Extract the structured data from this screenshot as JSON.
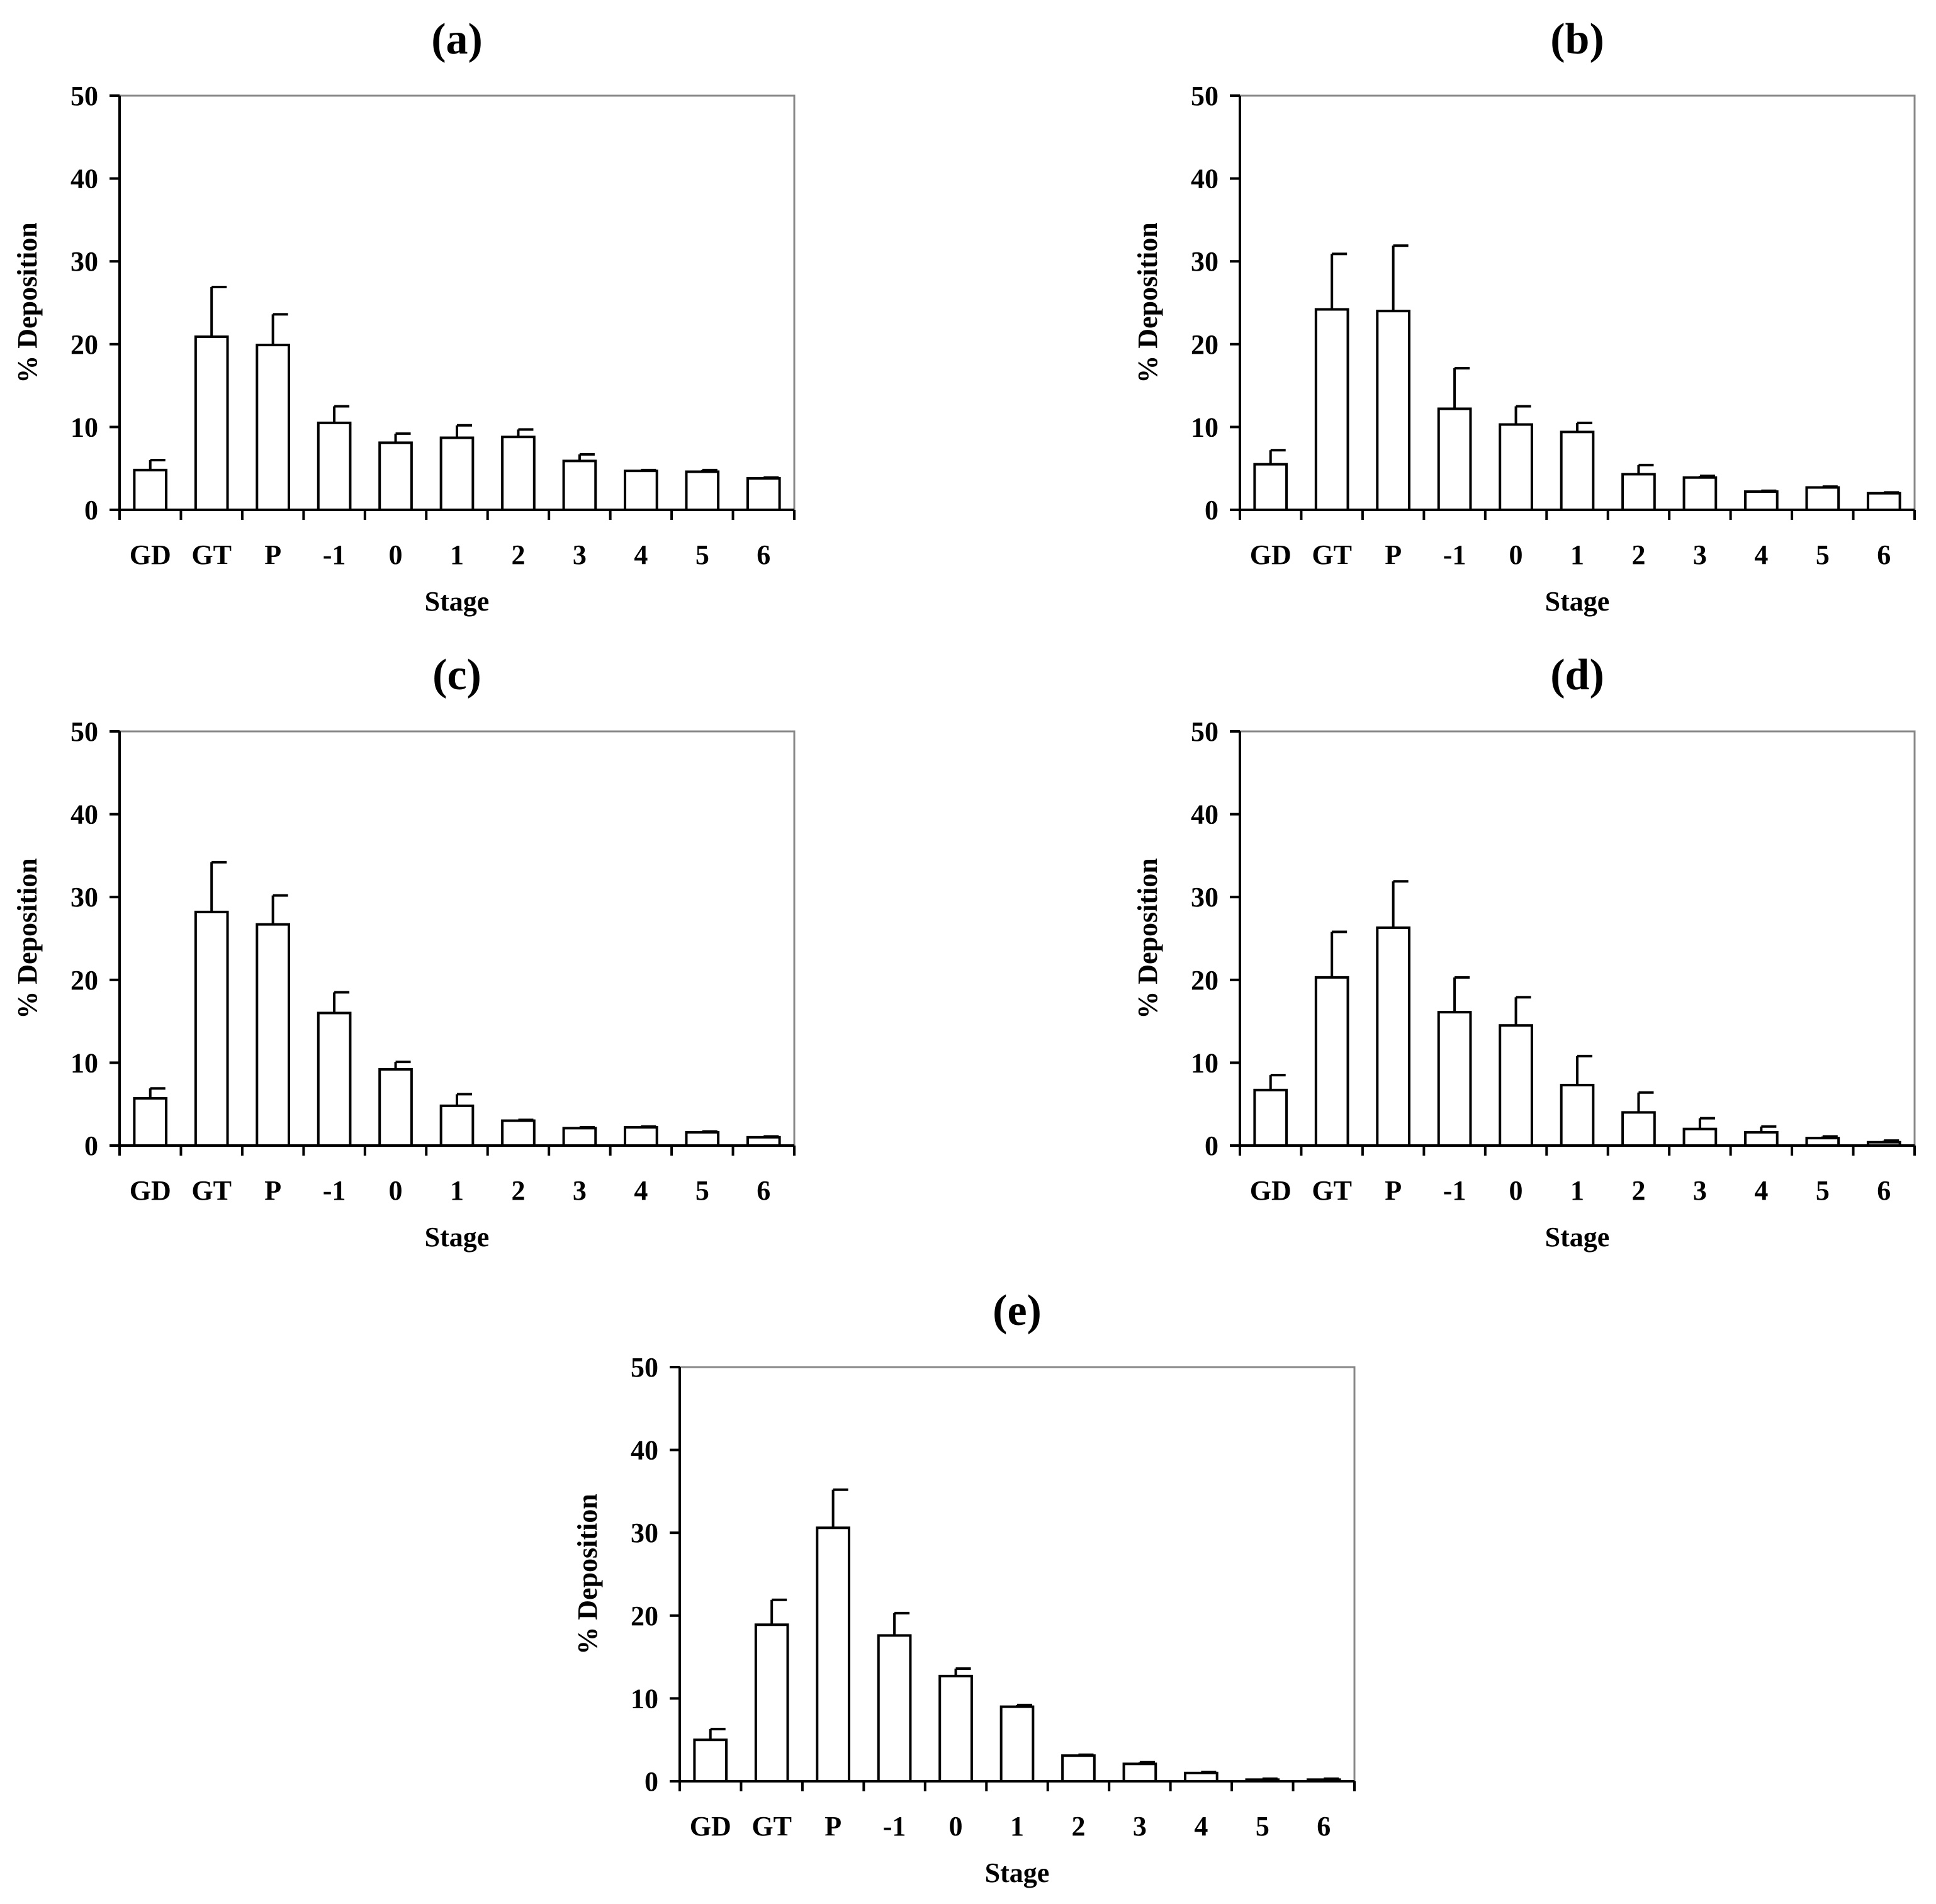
{
  "chart_data": [
    {
      "type": "bar",
      "title": "(a)",
      "xlabel": "Stage",
      "ylabel": "% Deposition",
      "ylim": [
        0,
        50
      ],
      "yticks": [
        0,
        10,
        20,
        30,
        40,
        50
      ],
      "categories": [
        "GD",
        "GT",
        "P",
        "-1",
        "0",
        "1",
        "2",
        "3",
        "4",
        "5",
        "6"
      ],
      "values": [
        4.8,
        20.9,
        19.9,
        10.5,
        8.1,
        8.7,
        8.8,
        5.9,
        4.7,
        4.6,
        3.8
      ],
      "errors": [
        1.2,
        6.0,
        3.7,
        2.0,
        1.1,
        1.5,
        0.9,
        0.8,
        0.1,
        0.2,
        0.1
      ]
    },
    {
      "type": "bar",
      "title": "(b)",
      "xlabel": "Stage",
      "ylabel": "% Deposition",
      "ylim": [
        0,
        50
      ],
      "yticks": [
        0,
        10,
        20,
        30,
        40,
        50
      ],
      "categories": [
        "GD",
        "GT",
        "P",
        "-1",
        "0",
        "1",
        "2",
        "3",
        "4",
        "5",
        "6"
      ],
      "values": [
        5.5,
        24.2,
        24.0,
        12.2,
        10.3,
        9.4,
        4.3,
        3.9,
        2.2,
        2.7,
        2.0
      ],
      "errors": [
        1.7,
        6.7,
        7.9,
        4.9,
        2.2,
        1.1,
        1.1,
        0.2,
        0.1,
        0.1,
        0.1
      ]
    },
    {
      "type": "bar",
      "title": "(c)",
      "xlabel": "Stage",
      "ylabel": "% Deposition",
      "ylim": [
        0,
        50
      ],
      "yticks": [
        0,
        10,
        20,
        30,
        40,
        50
      ],
      "categories": [
        "GD",
        "GT",
        "P",
        "-1",
        "0",
        "1",
        "2",
        "3",
        "4",
        "5",
        "6"
      ],
      "values": [
        5.7,
        28.2,
        26.7,
        16.0,
        9.2,
        4.8,
        3.0,
        2.1,
        2.2,
        1.6,
        1.0
      ],
      "errors": [
        1.2,
        6.0,
        3.5,
        2.5,
        0.9,
        1.4,
        0.1,
        0.1,
        0.1,
        0.1,
        0.1
      ]
    },
    {
      "type": "bar",
      "title": "(d)",
      "xlabel": "Stage",
      "ylabel": "% Deposition",
      "ylim": [
        0,
        50
      ],
      "yticks": [
        0,
        10,
        20,
        30,
        40,
        50
      ],
      "categories": [
        "GD",
        "GT",
        "P",
        "-1",
        "0",
        "1",
        "2",
        "3",
        "4",
        "5",
        "6"
      ],
      "values": [
        6.7,
        20.3,
        26.3,
        16.1,
        14.5,
        7.3,
        4.0,
        2.0,
        1.6,
        0.9,
        0.4
      ],
      "errors": [
        1.8,
        5.5,
        5.6,
        4.2,
        3.4,
        3.5,
        2.4,
        1.3,
        0.7,
        0.2,
        0.2
      ]
    },
    {
      "type": "bar",
      "title": "(e)",
      "xlabel": "Stage",
      "ylabel": "% Deposition",
      "ylim": [
        0,
        50
      ],
      "yticks": [
        0,
        10,
        20,
        30,
        40,
        50
      ],
      "categories": [
        "GD",
        "GT",
        "P",
        "-1",
        "0",
        "1",
        "2",
        "3",
        "4",
        "5",
        "6"
      ],
      "values": [
        5.0,
        18.9,
        30.6,
        17.6,
        12.7,
        9.0,
        3.1,
        2.1,
        1.0,
        0.2,
        0.2
      ],
      "errors": [
        1.3,
        3.0,
        4.6,
        2.7,
        0.9,
        0.2,
        0.1,
        0.2,
        0.1,
        0.1,
        0.1
      ]
    }
  ],
  "style": {
    "bar_fill": "#ffffff",
    "stroke": "#000000"
  }
}
